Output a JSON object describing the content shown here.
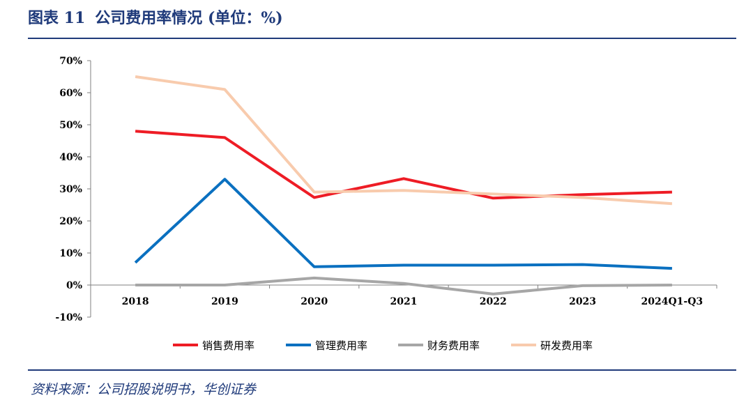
{
  "header": {
    "figure_label": "图表 11",
    "title": "公司费用率情况 (单位：%)"
  },
  "source": "资料来源：公司招股说明书，华创证券",
  "chart_data": {
    "type": "line",
    "categories": [
      "2018",
      "2019",
      "2020",
      "2021",
      "2022",
      "2023",
      "2024Q1-Q3"
    ],
    "y_ticks": [
      "70%",
      "60%",
      "50%",
      "40%",
      "30%",
      "20%",
      "10%",
      "0%",
      "-10%"
    ],
    "ylim": [
      -10,
      70
    ],
    "grid": false,
    "legend_position": "bottom",
    "series": [
      {
        "name": "销售费用率",
        "color": "#ee1c25",
        "values": [
          48,
          46,
          27.3,
          33.2,
          27.1,
          28.2,
          29
        ]
      },
      {
        "name": "管理费用率",
        "color": "#0a70c0",
        "values": [
          7,
          33,
          5.7,
          6.2,
          6.2,
          6.4,
          5.2
        ]
      },
      {
        "name": "财务费用率",
        "color": "#a6a6a6",
        "values": [
          0,
          0,
          2.2,
          0.5,
          -2.8,
          -0.2,
          0
        ]
      },
      {
        "name": "研发费用率",
        "color": "#f8cbad",
        "values": [
          65,
          61,
          29,
          29.5,
          28.4,
          27.3,
          25.4
        ]
      }
    ]
  }
}
